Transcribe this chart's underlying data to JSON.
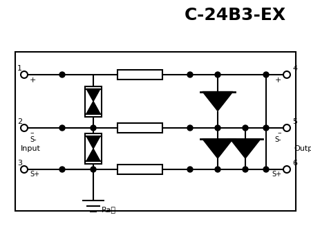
{
  "title": "C-24B3-EX",
  "title_fontsize": 18,
  "title_fontweight": "bold",
  "bg_color": "#ffffff",
  "line_color": "#000000",
  "line_width": 1.5,
  "ground_label": "Ra軌",
  "input_label": "Input",
  "output_label": "Output",
  "fig_w": 4.5,
  "fig_h": 3.5,
  "dpi": 100
}
